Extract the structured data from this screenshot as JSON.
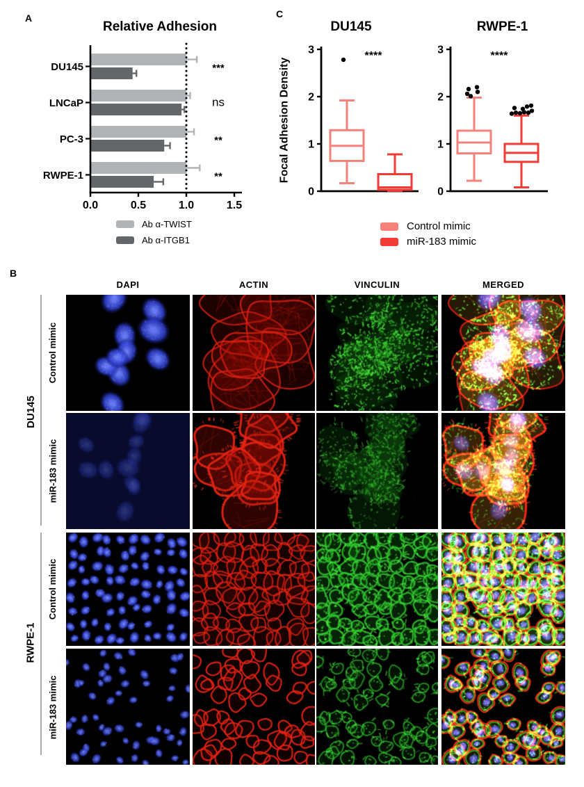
{
  "figure": {
    "panel_labels": {
      "a": "A",
      "b": "B",
      "c": "C"
    }
  },
  "chart_data": [
    {
      "id": "relative_adhesion",
      "type": "bar",
      "orientation": "horizontal",
      "title": "Relative Adhesion",
      "categories": [
        "DU145",
        "LNCaP",
        "PC-3",
        "RWPE-1"
      ],
      "series": [
        {
          "name": "Ab α-TWIST",
          "color": "#b1b4b6",
          "values": [
            1.0,
            1.0,
            1.0,
            1.0
          ],
          "errors": [
            0.11,
            0.04,
            0.08,
            0.14
          ]
        },
        {
          "name": "Ab α-ITGB1",
          "color": "#63676a",
          "values": [
            0.44,
            0.95,
            0.77,
            0.66
          ],
          "errors": [
            0.04,
            0.03,
            0.06,
            0.1
          ]
        }
      ],
      "significance": [
        "***",
        "ns",
        "**",
        "**"
      ],
      "xlim": [
        0,
        1.5
      ],
      "xticks": [
        {
          "v": 0.0,
          "label": "0.0"
        },
        {
          "v": 0.5,
          "label": "0.5"
        },
        {
          "v": 1.0,
          "label": "1.0"
        },
        {
          "v": 1.5,
          "label": "1.5"
        }
      ],
      "reference_line": 1.0,
      "legend_position": "bottom"
    },
    {
      "id": "du145_focal_adhesion",
      "type": "box",
      "title": "DU145",
      "ylabel": "Focal Adhesion Density",
      "ylim": [
        0,
        3
      ],
      "yticks": [
        0,
        1,
        2,
        3
      ],
      "significance": "****",
      "boxes": [
        {
          "name": "Control mimic",
          "color": "#f5827a",
          "min": 0.17,
          "q1": 0.64,
          "median": 0.96,
          "q3": 1.29,
          "max": 1.92,
          "outliers": [
            2.78
          ]
        },
        {
          "name": "miR-183 mimic",
          "color": "#f23b35",
          "min": 0.01,
          "q1": 0.03,
          "median": 0.08,
          "q3": 0.36,
          "max": 0.78,
          "outliers": []
        }
      ]
    },
    {
      "id": "rwpe1_focal_adhesion",
      "type": "box",
      "title": "RWPE-1",
      "ylabel": "Focal Adhesion Density",
      "ylim": [
        0,
        3
      ],
      "yticks": [
        0,
        1,
        2,
        3
      ],
      "significance": "****",
      "boxes": [
        {
          "name": "Control mimic",
          "color": "#f5827a",
          "min": 0.22,
          "q1": 0.8,
          "median": 1.03,
          "q3": 1.28,
          "max": 1.98,
          "outliers": [
            2.01,
            2.06,
            2.1,
            2.16,
            2.2
          ]
        },
        {
          "name": "miR-183 mimic",
          "color": "#f23b35",
          "min": 0.08,
          "q1": 0.62,
          "median": 0.81,
          "q3": 1.0,
          "max": 1.6,
          "outliers": [
            1.64,
            1.66,
            1.65,
            1.67,
            1.66,
            1.7,
            1.76,
            1.74,
            1.79,
            1.81
          ]
        }
      ]
    }
  ],
  "panel_b": {
    "column_headers": [
      "DAPI",
      "ACTIN",
      "VINCULIN",
      "MERGED"
    ],
    "row_groups": [
      {
        "label": "DU145",
        "rows": [
          "Control mimic",
          "miR-183 mimic"
        ]
      },
      {
        "label": "RWPE-1",
        "rows": [
          "Control mimic",
          "miR-183 mimic"
        ]
      }
    ],
    "channel_colors": {
      "dapi": "#2a3bd0",
      "actin": "#d91f0a",
      "vinculin": "#2bc42b"
    },
    "rows": [
      {
        "cell_line": "DU145",
        "condition": "Control mimic",
        "morphology": "spread",
        "density": "sparse",
        "dapi_brightness": "bright"
      },
      {
        "cell_line": "DU145",
        "condition": "miR-183 mimic",
        "morphology": "rounded",
        "density": "sparse",
        "dapi_brightness": "dim"
      },
      {
        "cell_line": "RWPE-1",
        "condition": "Control mimic",
        "morphology": "cobblestone",
        "density": "confluent",
        "dapi_brightness": "bright"
      },
      {
        "cell_line": "RWPE-1",
        "condition": "miR-183 mimic",
        "morphology": "scattered",
        "density": "subconfluent",
        "dapi_brightness": "bright"
      }
    ]
  }
}
